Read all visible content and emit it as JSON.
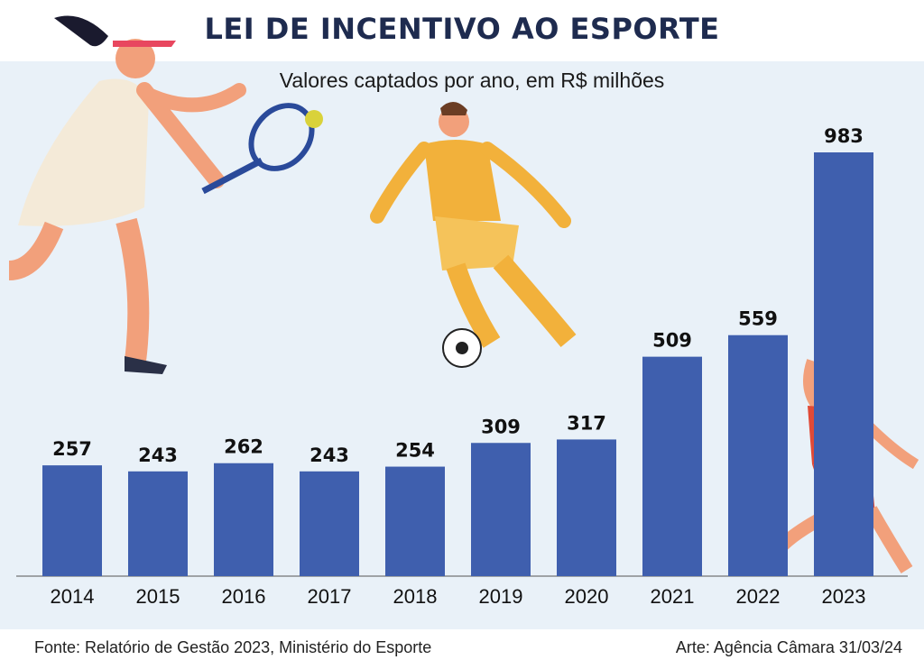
{
  "title": "LEI DE INCENTIVO AO ESPORTE",
  "footer": {
    "source": "Fonte: Relatório de Gestão 2023, Ministério do Esporte",
    "credit": "Arte: Agência Câmara 31/03/24"
  },
  "colors": {
    "bar": "#3f5fae",
    "panel": "#e9f1f8",
    "title": "#1e2b4f"
  },
  "chart_data": {
    "type": "bar",
    "subtitle": "Valores captados por ano, em R$ milhões",
    "categories": [
      "2014",
      "2015",
      "2016",
      "2017",
      "2018",
      "2019",
      "2020",
      "2021",
      "2022",
      "2023"
    ],
    "values": [
      257,
      243,
      262,
      243,
      254,
      309,
      317,
      509,
      559,
      983
    ],
    "data_labels": [
      "257",
      "243",
      "262",
      "243",
      "254",
      "309",
      "317",
      "509",
      "559",
      "983"
    ],
    "grid": false
  }
}
